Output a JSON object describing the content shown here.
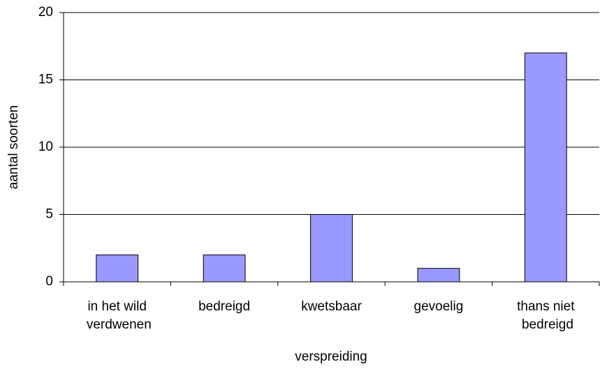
{
  "chart_data": {
    "type": "bar",
    "categories": [
      "in het wild verdwenen",
      "bedreigd",
      "kwetsbaar",
      "gevoelig",
      "thans niet bedreigd"
    ],
    "values": [
      2,
      2,
      5,
      1,
      17
    ],
    "color": "#9999ff",
    "ylim": [
      0,
      20
    ],
    "yticks": [
      0,
      5,
      10,
      15,
      20
    ],
    "grid": true,
    "xlabel": "verspreiding",
    "ylabel": "aantal soorten"
  }
}
